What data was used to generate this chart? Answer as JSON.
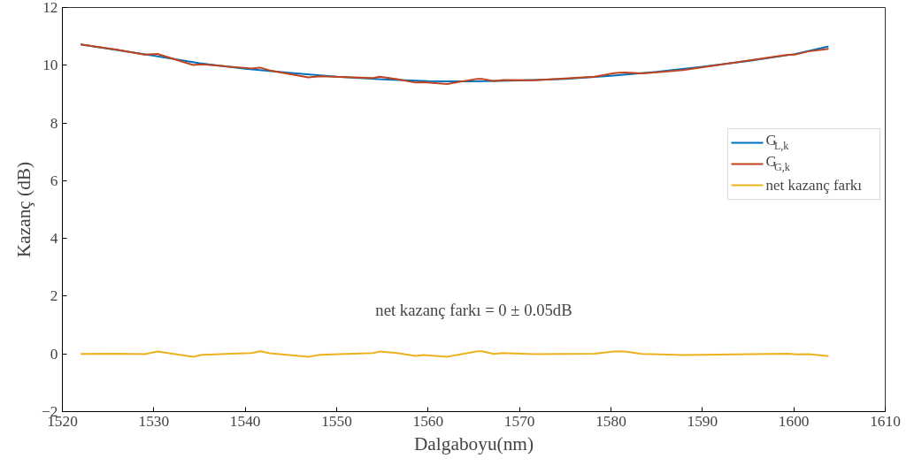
{
  "chart_data": {
    "type": "line",
    "xlabel": "Dalgaboyu(nm)",
    "ylabel": "Kazanç (dB)",
    "xlim": [
      1520,
      1610
    ],
    "xticks": [
      1520,
      1530,
      1540,
      1550,
      1560,
      1570,
      1580,
      1590,
      1600,
      1610
    ],
    "ylim": [
      -2,
      12
    ],
    "yticks": [
      -2,
      0,
      2,
      4,
      6,
      8,
      10,
      12
    ],
    "grid": false,
    "legend": "right",
    "line_style": "solid",
    "marker": "none",
    "annotations": [
      "net kazanç farkı = 0 ± 0.05dB"
    ],
    "series": [
      {
        "name": "G$_{L,k}$",
        "color": "#0072bd",
        "x": [
          1522,
          1530,
          1535,
          1540,
          1545,
          1550,
          1555,
          1560,
          1565,
          1570,
          1575,
          1580,
          1585,
          1590,
          1595,
          1600,
          1603.8
        ],
        "values": [
          10.72,
          10.33,
          10.07,
          9.88,
          9.73,
          9.6,
          9.51,
          9.45,
          9.44,
          9.47,
          9.53,
          9.63,
          9.77,
          9.95,
          10.15,
          10.38,
          10.65
        ]
      },
      {
        "name": "G$_{G,k}$",
        "color": "#c0431f",
        "x": [
          1522,
          1526,
          1529,
          1530.4,
          1534.3,
          1535.3,
          1540.7,
          1541.6,
          1542.7,
          1546.9,
          1548.2,
          1554.0,
          1554.7,
          1556.6,
          1558.6,
          1559.5,
          1562.1,
          1565.4,
          1565.9,
          1567.2,
          1568.2,
          1571.7,
          1578.2,
          1580.5,
          1581.5,
          1583.4,
          1587.9,
          1599.3,
          1600.3,
          1601.6,
          1603.8
        ],
        "values": [
          10.72,
          10.54,
          10.37,
          10.39,
          10.01,
          10.03,
          9.89,
          9.92,
          9.82,
          9.58,
          9.62,
          9.56,
          9.6,
          9.52,
          9.4,
          9.41,
          9.35,
          9.53,
          9.53,
          9.45,
          9.49,
          9.48,
          9.6,
          9.73,
          9.75,
          9.72,
          9.83,
          10.36,
          10.38,
          10.48,
          10.57
        ]
      },
      {
        "name": "net kazanç farkı",
        "color": "#edb120",
        "x": [
          1522,
          1526,
          1529,
          1530.4,
          1534.3,
          1535.3,
          1540.7,
          1541.6,
          1542.7,
          1546.9,
          1548.2,
          1554.0,
          1554.7,
          1556.6,
          1558.6,
          1559.5,
          1562.1,
          1565.4,
          1565.9,
          1567.2,
          1568.2,
          1571.7,
          1578.2,
          1580.5,
          1581.5,
          1583.4,
          1587.9,
          1599.3,
          1600.3,
          1601.6,
          1603.8
        ],
        "values": [
          0,
          0.01,
          -0.01,
          0.08,
          -0.1,
          -0.03,
          0.03,
          0.09,
          0.02,
          -0.1,
          -0.03,
          0.03,
          0.08,
          0.03,
          -0.07,
          -0.04,
          -0.1,
          0.09,
          0.09,
          0,
          0.03,
          -0.01,
          0.01,
          0.09,
          0.08,
          0,
          -0.04,
          0.01,
          -0.02,
          -0.01,
          -0.08
        ]
      }
    ]
  }
}
